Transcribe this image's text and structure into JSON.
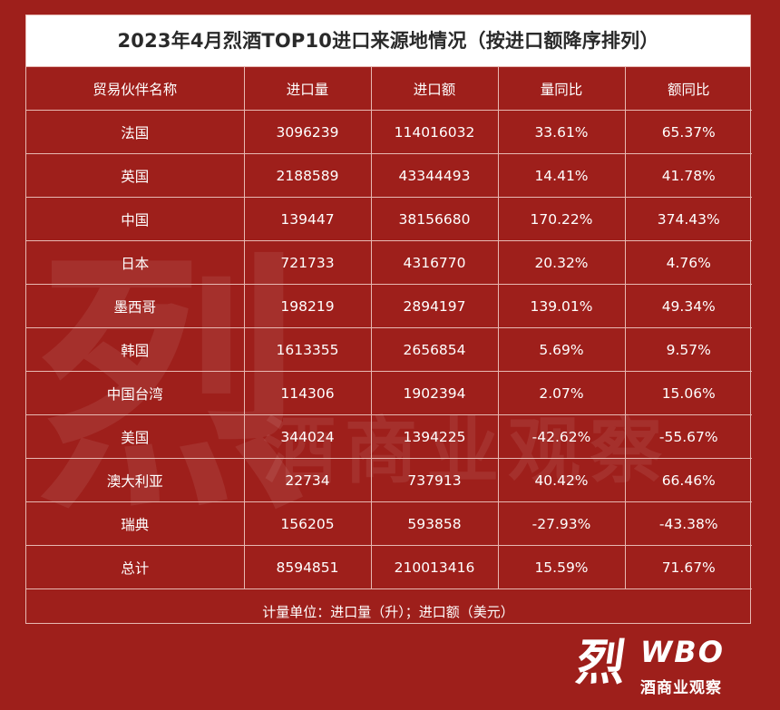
{
  "chart_data": {
    "type": "table",
    "title": "2023年4月烈酒TOP10进口来源地情况（按进口额降序排列）",
    "columns": [
      "贸易伙伴名称",
      "进口量",
      "进口额",
      "量同比",
      "额同比"
    ],
    "rows": [
      [
        "法国",
        "3096239",
        "114016032",
        "33.61%",
        "65.37%"
      ],
      [
        "英国",
        "2188589",
        "43344493",
        "14.41%",
        "41.78%"
      ],
      [
        "中国",
        "139447",
        "38156680",
        "170.22%",
        "374.43%"
      ],
      [
        "日本",
        "721733",
        "4316770",
        "20.32%",
        "4.76%"
      ],
      [
        "墨西哥",
        "198219",
        "2894197",
        "139.01%",
        "49.34%"
      ],
      [
        "韩国",
        "1613355",
        "2656854",
        "5.69%",
        "9.57%"
      ],
      [
        "中国台湾",
        "114306",
        "1902394",
        "2.07%",
        "15.06%"
      ],
      [
        "美国",
        "344024",
        "1394225",
        "-42.62%",
        "-55.67%"
      ],
      [
        "澳大利亚",
        "22734",
        "737913",
        "40.42%",
        "66.46%"
      ],
      [
        "瑞典",
        "156205",
        "593858",
        "-27.93%",
        "-43.38%"
      ],
      [
        "总计",
        "8594851",
        "210013416",
        "15.59%",
        "71.67%"
      ]
    ],
    "note": "计量单位：进口量（升）；进口额（美元）"
  },
  "watermark": {
    "mark": "烈",
    "text": "酒商业观察"
  },
  "logo": {
    "mark": "烈",
    "brand": "WBO",
    "sub": "酒商业观察"
  },
  "colors": {
    "background": "#9e1f1b",
    "title_bg": "#ffffff",
    "grid_line": "#e7b8b2",
    "text": "#ffffff"
  }
}
